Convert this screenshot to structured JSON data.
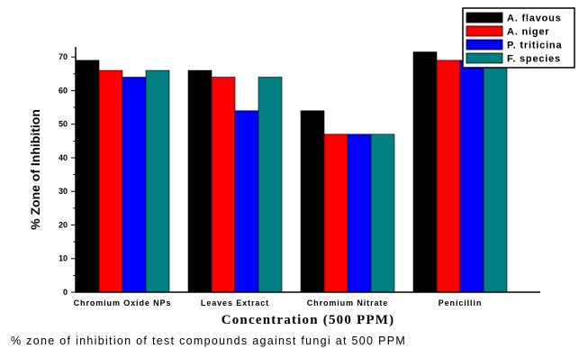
{
  "chart_data": {
    "type": "bar",
    "categories": [
      "Chromium Oxide NPs",
      "Leaves Extract",
      "Chromium Nitrate",
      "Penicillin"
    ],
    "series": [
      {
        "name": "A. flavous",
        "color": "#000000",
        "values": [
          69,
          66,
          54,
          71.5
        ]
      },
      {
        "name": "A. niger",
        "color": "#ff0000",
        "values": [
          66,
          64,
          47,
          69
        ]
      },
      {
        "name": "P. triticina",
        "color": "#0000ff",
        "values": [
          64,
          54,
          47,
          69
        ]
      },
      {
        "name": "F. species",
        "color": "#008080",
        "values": [
          66,
          64,
          47,
          69
        ]
      }
    ],
    "ylim": [
      0,
      73
    ],
    "yticks": [
      0,
      10,
      20,
      30,
      40,
      50,
      60,
      70
    ],
    "xlabel": "Concentration (500 PPM)",
    "ylabel": "% Zone of Inhibition",
    "legend_position": "top-right"
  },
  "caption": "% zone of inhibition of test compounds against fungi at 500 PPM"
}
